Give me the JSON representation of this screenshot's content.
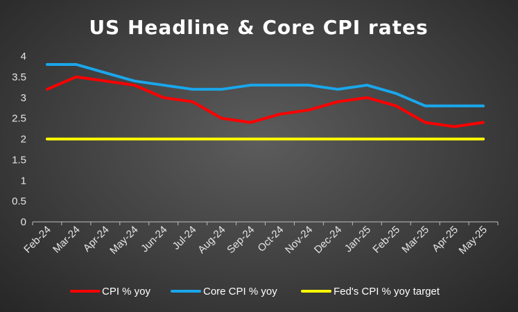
{
  "chart_data": {
    "type": "line",
    "title": "US Headline & Core CPI rates",
    "xlabel": "",
    "ylabel": "",
    "categories": [
      "Feb-24",
      "Mar-24",
      "Apr-24",
      "May-24",
      "Jun-24",
      "Jul-24",
      "Aug-24",
      "Sep-24",
      "Oct-24",
      "Nov-24",
      "Dec-24",
      "Jan-25",
      "Feb-25",
      "Mar-25",
      "Apr-25",
      "May-25"
    ],
    "ylim": [
      0,
      4
    ],
    "yticks": [
      "0",
      "0.5",
      "1",
      "1.5",
      "2",
      "2.5",
      "3",
      "3.5",
      "4"
    ],
    "grid": false,
    "legend_position": "bottom",
    "series": [
      {
        "name": "CPI % yoy",
        "color": "#ff0000",
        "values": [
          3.2,
          3.5,
          3.4,
          3.3,
          3.0,
          2.9,
          2.5,
          2.4,
          2.6,
          2.7,
          2.9,
          3.0,
          2.8,
          2.4,
          2.3,
          2.4
        ]
      },
      {
        "name": "Core CPI % yoy",
        "color": "#1aa7ec",
        "values": [
          3.8,
          3.8,
          3.6,
          3.4,
          3.3,
          3.2,
          3.2,
          3.3,
          3.3,
          3.3,
          3.2,
          3.3,
          3.1,
          2.8,
          2.8,
          2.8
        ]
      },
      {
        "name": "Fed's CPI % yoy target",
        "color": "#ffff00",
        "values": [
          2,
          2,
          2,
          2,
          2,
          2,
          2,
          2,
          2,
          2,
          2,
          2,
          2,
          2,
          2,
          2
        ]
      }
    ]
  }
}
